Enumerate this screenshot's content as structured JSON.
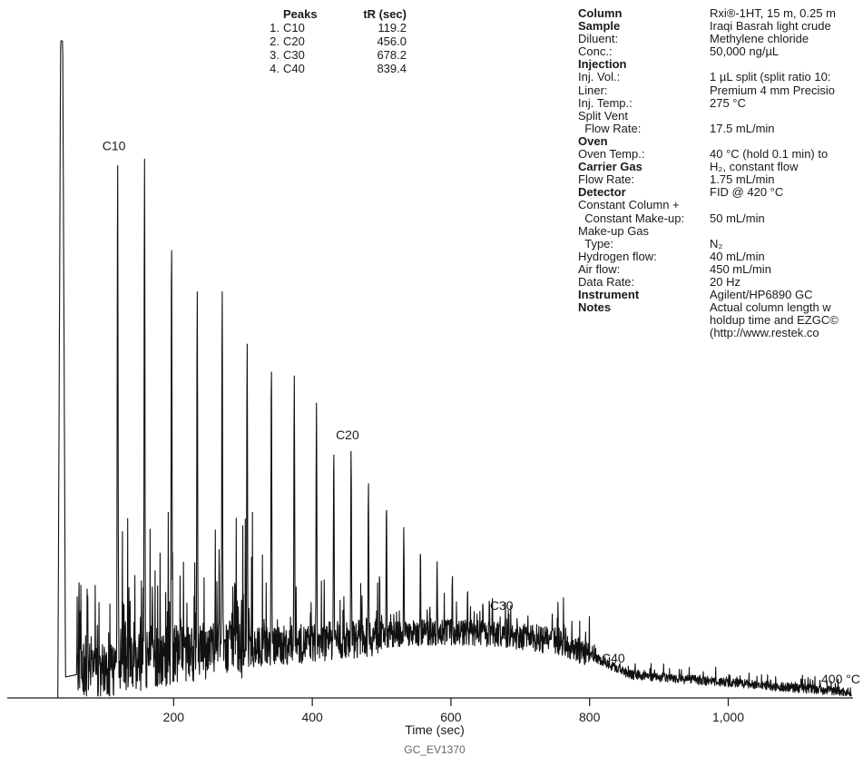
{
  "chart_data": {
    "type": "line",
    "xlabel": "Time (sec)",
    "ylabel": "",
    "xlim": [
      -40,
      1180
    ],
    "xticks": [
      200,
      400,
      600,
      800,
      1000
    ],
    "xtick_labels": [
      "200",
      "400",
      "600",
      "800",
      "1,000"
    ],
    "grid": false,
    "footer_code": "GC_EV1370",
    "end_annotation": "400 °C",
    "peak_labels": [
      {
        "label": "C10",
        "x": 119.2
      },
      {
        "label": "C20",
        "x": 456.0
      },
      {
        "label": "C30",
        "x": 678.2
      },
      {
        "label": "C40",
        "x": 839.4
      }
    ],
    "series": [
      {
        "values_note": "",
        "x": [
          35,
          119.2,
          158,
          197,
          234,
          270,
          306,
          341,
          374,
          406,
          431,
          456,
          481,
          507,
          532,
          556,
          580,
          602,
          624,
          646,
          660,
          678.2,
          696,
          712,
          729,
          746,
          763,
          781,
          800,
          819,
          839.4
        ],
        "y": [
          100,
          82,
          82,
          70,
          62,
          62,
          54,
          51,
          49,
          45,
          38,
          38,
          33,
          30,
          26,
          23,
          21,
          19,
          17,
          15,
          14,
          12,
          11,
          10,
          9,
          8,
          7,
          6,
          5,
          4.5,
          4
        ]
      }
    ]
  },
  "peaks_table": {
    "header_name": "Peaks",
    "header_tr": "tR (sec)",
    "rows": [
      {
        "num": "1.",
        "name": "C10",
        "tr": "119.2"
      },
      {
        "num": "2.",
        "name": "C20",
        "tr": "456.0"
      },
      {
        "num": "3.",
        "name": "C30",
        "tr": "678.2"
      },
      {
        "num": "4.",
        "name": "C40",
        "tr": "839.4"
      }
    ]
  },
  "conditions": [
    {
      "label": "Column",
      "value": "Rxi®-1HT, 15 m, 0.25 m",
      "bold": true
    },
    {
      "label": "Sample",
      "value": "Iraqi Basrah light crude",
      "bold": true
    },
    {
      "label": "Diluent:",
      "value": "Methylene chloride",
      "bold": false
    },
    {
      "label": "Conc.:",
      "value": "50,000 ng/µL",
      "bold": false
    },
    {
      "label": "Injection",
      "value": "",
      "bold": true
    },
    {
      "label": "Inj. Vol.:",
      "value": "1 µL split (split ratio 10:",
      "bold": false
    },
    {
      "label": "Liner:",
      "value": "Premium 4 mm Precisio",
      "bold": false
    },
    {
      "label": "Inj. Temp.:",
      "value": "275 °C",
      "bold": false
    },
    {
      "label": "Split Vent",
      "value": "",
      "bold": false
    },
    {
      "label": "  Flow Rate:",
      "value": "17.5 mL/min",
      "bold": false
    },
    {
      "label": "Oven",
      "value": "",
      "bold": true
    },
    {
      "label": "Oven Temp.:",
      "value": "40 °C (hold 0.1 min) to",
      "bold": false
    },
    {
      "label": "Carrier Gas",
      "value": "H₂, constant flow",
      "bold": true
    },
    {
      "label": "Flow Rate:",
      "value": "1.75 mL/min",
      "bold": false
    },
    {
      "label": "Detector",
      "value": "FID @ 420 °C",
      "bold": true
    },
    {
      "label": "Constant Column +",
      "value": "",
      "bold": false
    },
    {
      "label": "  Constant Make-up:",
      "value": "50 mL/min",
      "bold": false
    },
    {
      "label": "Make-up Gas",
      "value": "",
      "bold": false
    },
    {
      "label": "  Type:",
      "value": "N₂",
      "bold": false
    },
    {
      "label": "Hydrogen flow:",
      "value": "40 mL/min",
      "bold": false
    },
    {
      "label": "Air flow:",
      "value": "450 mL/min",
      "bold": false
    },
    {
      "label": "Data Rate:",
      "value": "20 Hz",
      "bold": false
    },
    {
      "label": "Instrument",
      "value": "Agilent/HP6890 GC",
      "bold": true
    },
    {
      "label": "Notes",
      "value": "Actual column length w",
      "bold": true
    },
    {
      "label": "",
      "value": "holdup time and EZGC©",
      "bold": false
    },
    {
      "label": "",
      "value": "(http://www.restek.co",
      "bold": false
    }
  ]
}
